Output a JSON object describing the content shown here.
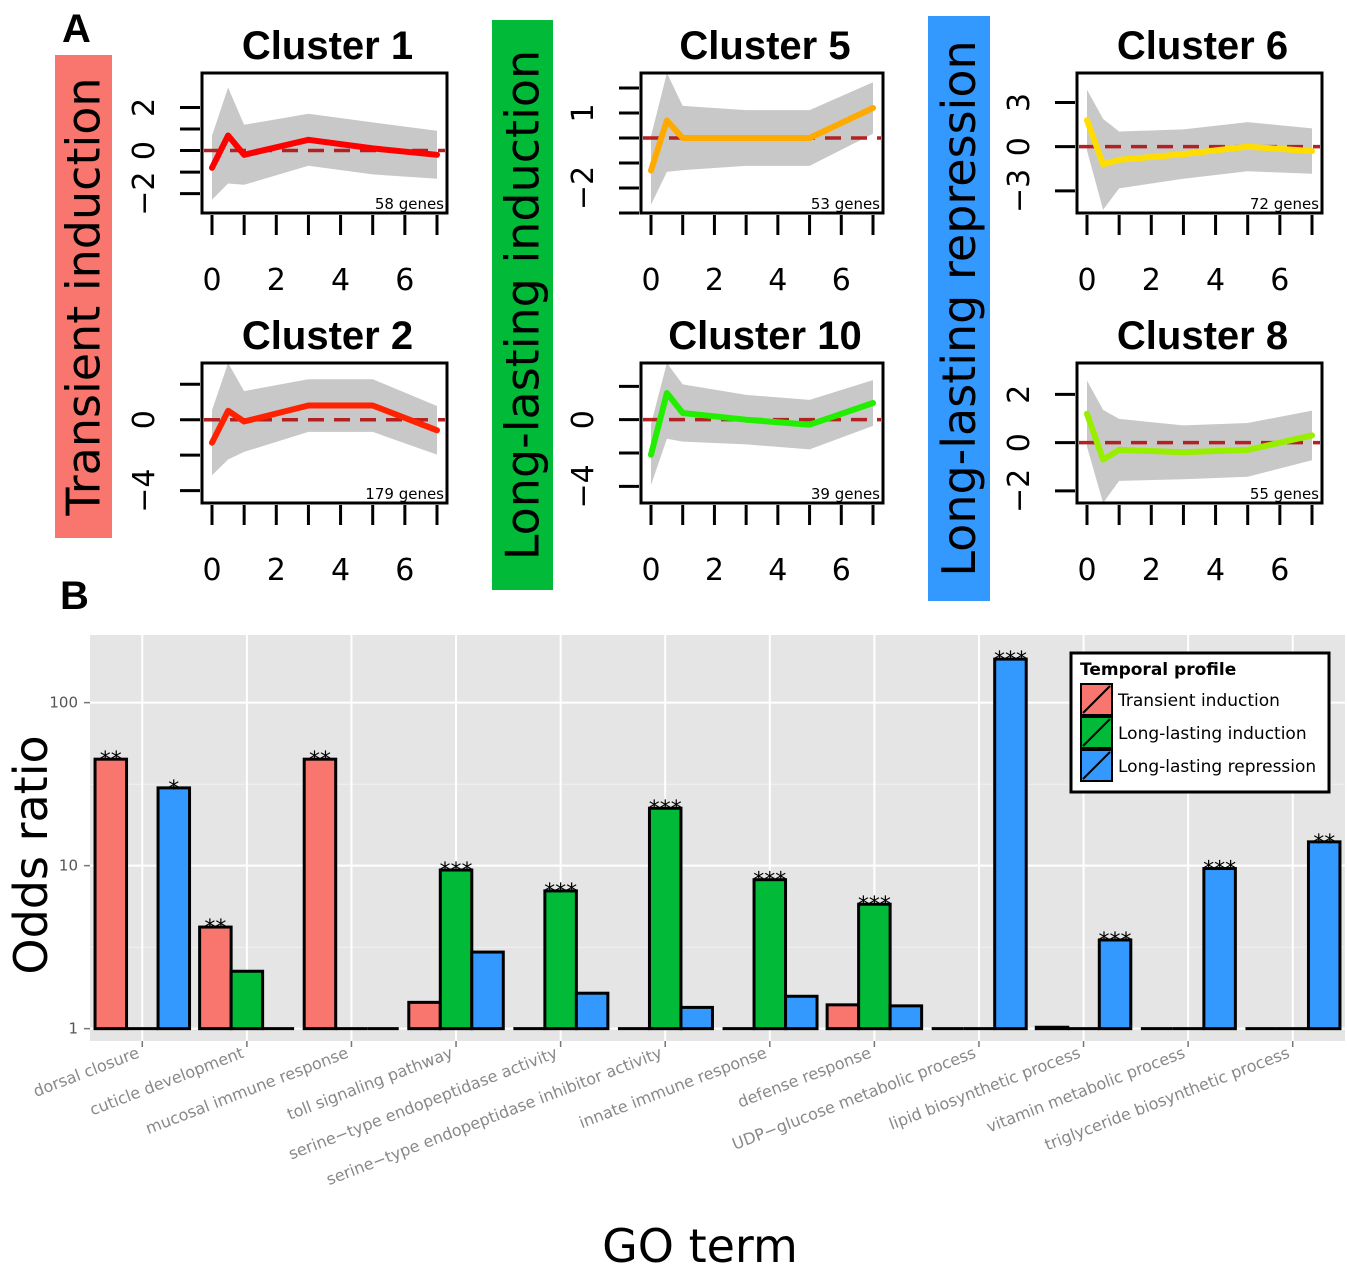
{
  "panel_labels": {
    "a": "A",
    "b": "B"
  },
  "colors": {
    "transient": "#f8766d",
    "long_induction": "#00ba38",
    "long_repression": "#3399ff",
    "band": "#c8c8c8",
    "zero_line": "#b22222",
    "plot_bg": "#e5e5e5",
    "grid": "#ffffff"
  },
  "chart_data": [
    {
      "type": "line",
      "panel": "A",
      "profiles": [
        {
          "key": "transient",
          "label": "Transient induction"
        },
        {
          "key": "long_induction",
          "label": "Long-lasting induction"
        },
        {
          "key": "long_repression",
          "label": "Long-lasting repression"
        }
      ],
      "x": [
        0,
        0.5,
        1,
        3,
        5,
        7
      ],
      "x_ticks": [
        0,
        1,
        2,
        3,
        4,
        5,
        6,
        7
      ],
      "x_tick_labels": [
        "0",
        "2",
        "4",
        "6"
      ],
      "x_tick_label_values": [
        0,
        2,
        4,
        6
      ],
      "clusters": [
        {
          "title": "Cluster 1",
          "profile": "transient",
          "genes": "58 genes",
          "color": "#ff0000",
          "ylim": [
            -2.9,
            3.6
          ],
          "yticks": [
            -2,
            -1,
            0,
            1,
            2
          ],
          "ytick_labels": [
            "−2",
            "",
            "0",
            "",
            "2"
          ],
          "values": [
            -0.8,
            0.7,
            -0.2,
            0.5,
            0.1,
            -0.2
          ],
          "band_half_width": 1.3
        },
        {
          "title": "Cluster 2",
          "profile": "transient",
          "genes": "179 genes",
          "color": "#ff2200",
          "ylim": [
            -4.7,
            3.2
          ],
          "yticks": [
            -4,
            -2,
            0,
            2
          ],
          "ytick_labels": [
            "−4",
            "",
            "0",
            ""
          ],
          "values": [
            -1.3,
            0.5,
            -0.1,
            0.8,
            0.8,
            -0.6
          ],
          "band_half_width": 1.6
        },
        {
          "title": "Cluster 5",
          "profile": "long_induction",
          "genes": "53 genes",
          "color": "#ffaa00",
          "ylim": [
            -3.0,
            2.6
          ],
          "yticks": [
            -3,
            -2,
            -1,
            0,
            1,
            2
          ],
          "ytick_labels": [
            "",
            "−2",
            "",
            "",
            "1",
            ""
          ],
          "values": [
            -1.3,
            0.7,
            0.0,
            0.0,
            0.0,
            1.2
          ],
          "band_half_width": 1.2
        },
        {
          "title": "Cluster 10",
          "profile": "long_induction",
          "genes": "39 genes",
          "color": "#22ee00",
          "ylim": [
            -5.0,
            3.4
          ],
          "yticks": [
            -4,
            -2,
            0,
            2
          ],
          "ytick_labels": [
            "−4",
            "",
            "0",
            ""
          ],
          "values": [
            -2.1,
            1.6,
            0.4,
            0.0,
            -0.3,
            1.0
          ],
          "band_half_width": 1.6
        },
        {
          "title": "Cluster 6",
          "profile": "long_repression",
          "genes": "72 genes",
          "color": "#ffdd00",
          "ylim": [
            -4.5,
            5.0
          ],
          "yticks": [
            -3,
            0,
            3
          ],
          "ytick_labels": [
            "−3",
            "0",
            "3"
          ],
          "values": [
            1.8,
            -1.2,
            -0.9,
            -0.5,
            0.0,
            -0.3
          ],
          "band_half_width": 1.8
        },
        {
          "title": "Cluster 8",
          "profile": "long_repression",
          "genes": "55 genes",
          "color": "#99ee00",
          "ylim": [
            -2.5,
            3.3
          ],
          "yticks": [
            -2,
            0,
            2
          ],
          "ytick_labels": [
            "−2",
            "0",
            "2"
          ],
          "values": [
            1.2,
            -0.7,
            -0.3,
            -0.4,
            -0.3,
            0.3
          ],
          "band_half_width": 1.2
        }
      ]
    },
    {
      "type": "bar",
      "panel": "B",
      "xlabel": "GO term",
      "ylabel": "Odds ratio",
      "yscale": "log",
      "ylim": [
        0.84,
        260
      ],
      "yticks": [
        1,
        10,
        100
      ],
      "ytick_labels": [
        "1",
        "10",
        "100"
      ],
      "legend": {
        "title": "Temporal profile",
        "placement": "top-right",
        "entries": [
          "Transient induction",
          "Long-lasting induction",
          "Long-lasting repression"
        ]
      },
      "categories": [
        "dorsal closure",
        "cuticle development",
        "mucosal immune response",
        "toll signaling pathway",
        "serine−type endopeptidase activity",
        "serine−type endopeptidase inhibitor activity",
        "innate immune response",
        "defense response",
        "UDP−glucose metabolic process",
        "lipid biosynthetic process",
        "vitamin metabolic process",
        "triglyceride biosynthetic process"
      ],
      "series": [
        {
          "name": "Transient induction",
          "values": [
            45,
            4.2,
            45,
            1.45,
            1,
            1,
            1,
            1.4,
            1,
            1.02,
            1,
            1
          ],
          "stars": [
            "**",
            "**",
            "**",
            "",
            "",
            "",
            "",
            "",
            "",
            "",
            "",
            ""
          ]
        },
        {
          "name": "Long-lasting induction",
          "values": [
            1,
            2.25,
            1,
            9.4,
            7.0,
            22.5,
            8.2,
            5.8,
            1,
            1,
            1,
            1
          ],
          "stars": [
            "",
            "",
            "",
            "***",
            "***",
            "***",
            "***",
            "***",
            "",
            "",
            "",
            ""
          ]
        },
        {
          "name": "Long-lasting repression",
          "values": [
            30,
            1,
            1,
            2.95,
            1.65,
            1.35,
            1.58,
            1.38,
            185,
            3.5,
            9.6,
            14
          ],
          "stars": [
            "*",
            "",
            "",
            "",
            "",
            "",
            "",
            "",
            "***",
            "***",
            "***",
            "**"
          ]
        }
      ]
    }
  ]
}
